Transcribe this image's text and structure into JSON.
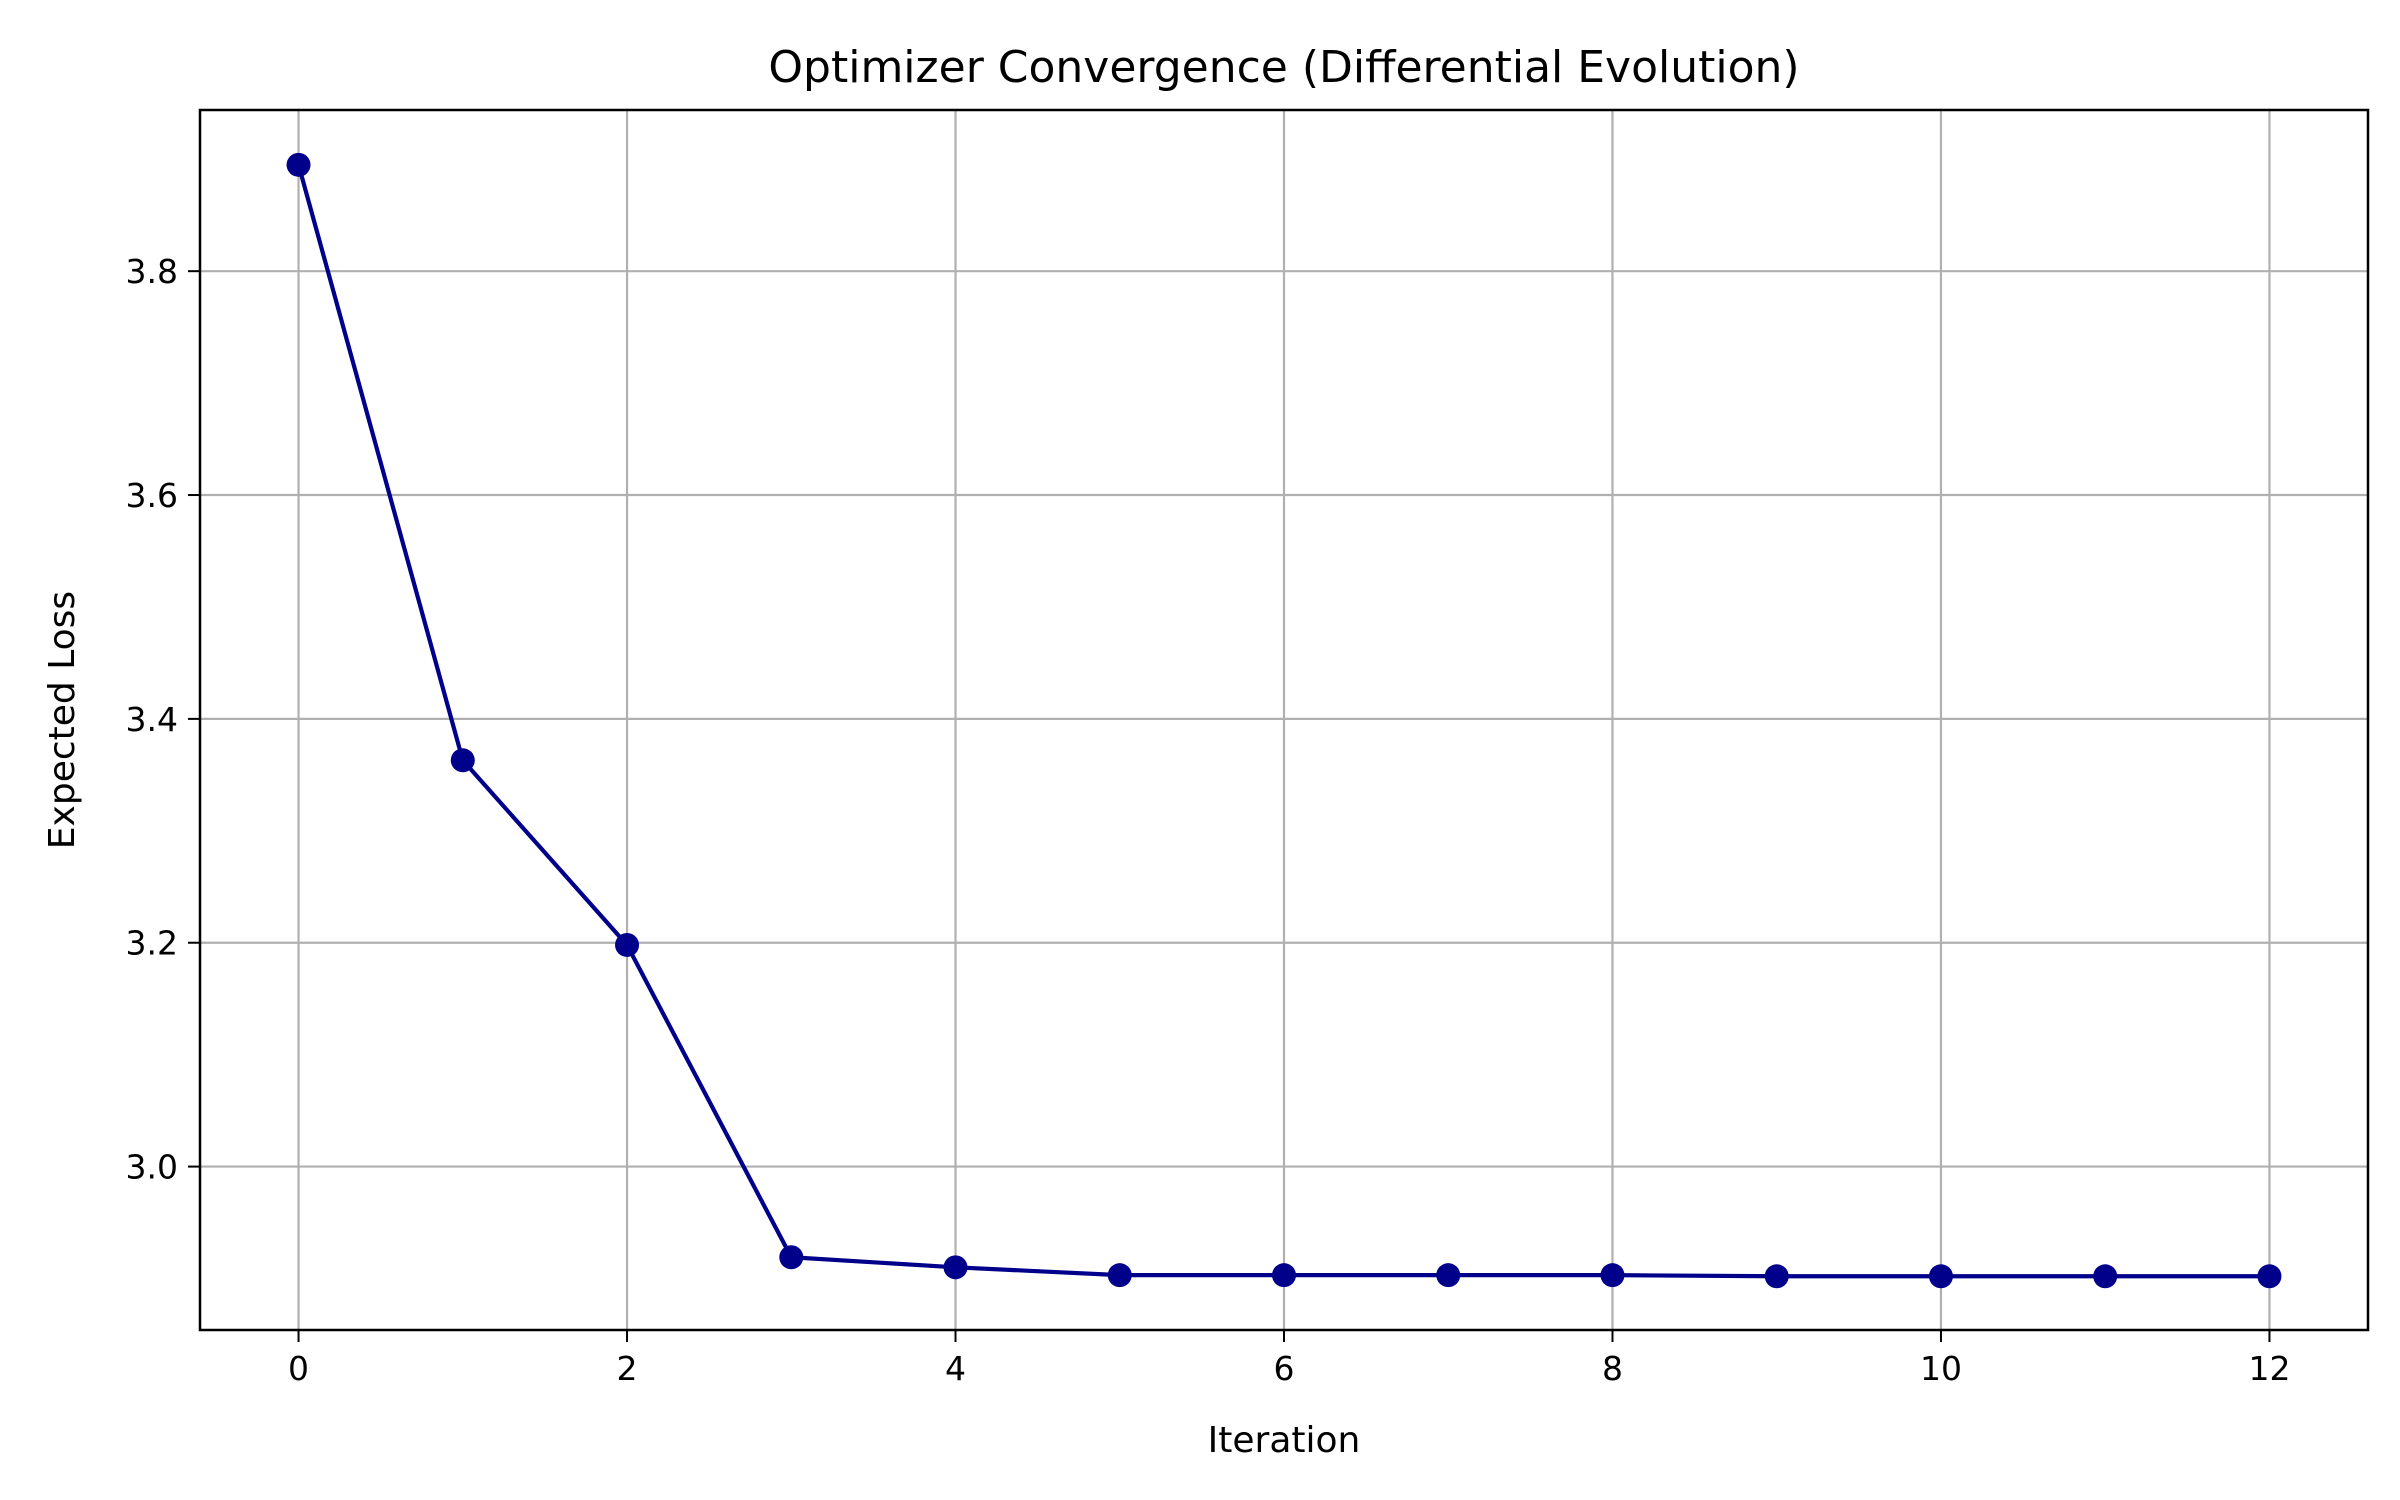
{
  "chart_data": {
    "type": "line",
    "title": "Optimizer Convergence (Differential Evolution)",
    "xlabel": "Iteration",
    "ylabel": "Expected Loss",
    "xlim": [
      -0.6,
      12.6
    ],
    "ylim": [
      2.854,
      3.944
    ],
    "xticks": [
      0,
      2,
      4,
      6,
      8,
      10,
      12
    ],
    "xtick_labels": [
      "0",
      "2",
      "4",
      "6",
      "8",
      "10",
      "12"
    ],
    "yticks": [
      3.0,
      3.2,
      3.4,
      3.6,
      3.8
    ],
    "ytick_labels": [
      "3.0",
      "3.2",
      "3.4",
      "3.6",
      "3.8"
    ],
    "grid": true,
    "legend": false,
    "series": [
      {
        "color": "#00008b",
        "marker": "circle",
        "x": [
          0,
          1,
          2,
          3,
          4,
          5,
          6,
          7,
          8,
          9,
          10,
          11,
          12
        ],
        "values": [
          3.895,
          3.363,
          3.198,
          2.919,
          2.91,
          2.903,
          2.903,
          2.903,
          2.903,
          2.902,
          2.902,
          2.902,
          2.902
        ]
      }
    ],
    "colors": {
      "grid": "#b0b0b0",
      "axes": "#000000",
      "background": "#ffffff"
    }
  }
}
